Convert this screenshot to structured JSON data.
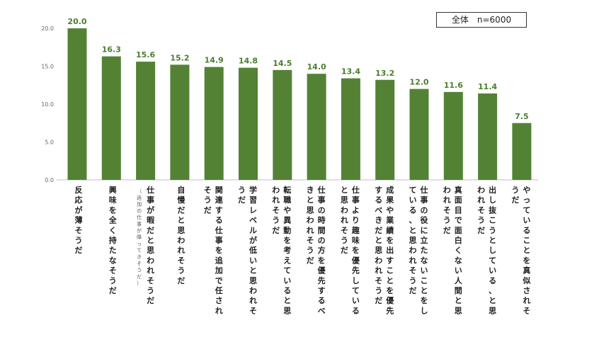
{
  "legend": {
    "text": "全体　n=6000"
  },
  "chart_data": {
    "type": "bar",
    "ylim": [
      0,
      20
    ],
    "yticks": [
      "0.0",
      "5.0",
      "10.0",
      "15.0",
      "20.0"
    ],
    "ytick_values": [
      0,
      5,
      10,
      15,
      20
    ],
    "bar_color": "#548235",
    "label_color": "#4a7f2c",
    "series": [
      {
        "values": [
          20.0,
          16.3,
          15.6,
          15.2,
          14.9,
          14.8,
          14.5,
          14.0,
          13.4,
          13.2,
          12.0,
          11.6,
          11.4,
          7.5
        ],
        "labels": [
          "20.0",
          "16.3",
          "15.6",
          "15.2",
          "14.9",
          "14.8",
          "14.5",
          "14.0",
          "13.4",
          "13.2",
          "12.0",
          "11.6",
          "11.4",
          "7.5"
        ]
      }
    ],
    "categories": [
      [
        "反応が薄そうだ"
      ],
      [
        "興味を全く持たなそうだ"
      ],
      [
        "仕事が暇だと思われそうだ",
        "（追加の仕事が降ってきそうだ）"
      ],
      [
        "自慢だと思われそうだ"
      ],
      [
        "関連する仕事を追加で任され",
        "そうだ"
      ],
      [
        "学習レベルが低いと思われそ",
        "うだ"
      ],
      [
        "転職や異動を考えていると思",
        "われそうだ"
      ],
      [
        "仕事の時間の方を優先するべ",
        "きと思われそうだ"
      ],
      [
        "仕事より趣味を優先している",
        "と思われそうだ"
      ],
      [
        "成果や業績を出すことを優先",
        "するべきだと思われそうだ"
      ],
      [
        "仕事の役に立たないことをし",
        "ている、と思われそうだ"
      ],
      [
        "真面目で面白くない人間と思",
        "われそうだ"
      ],
      [
        "出し抜こうとしている、と思",
        "われそうだ"
      ],
      [
        "やっていることを真似されそ",
        "うだ"
      ]
    ]
  }
}
